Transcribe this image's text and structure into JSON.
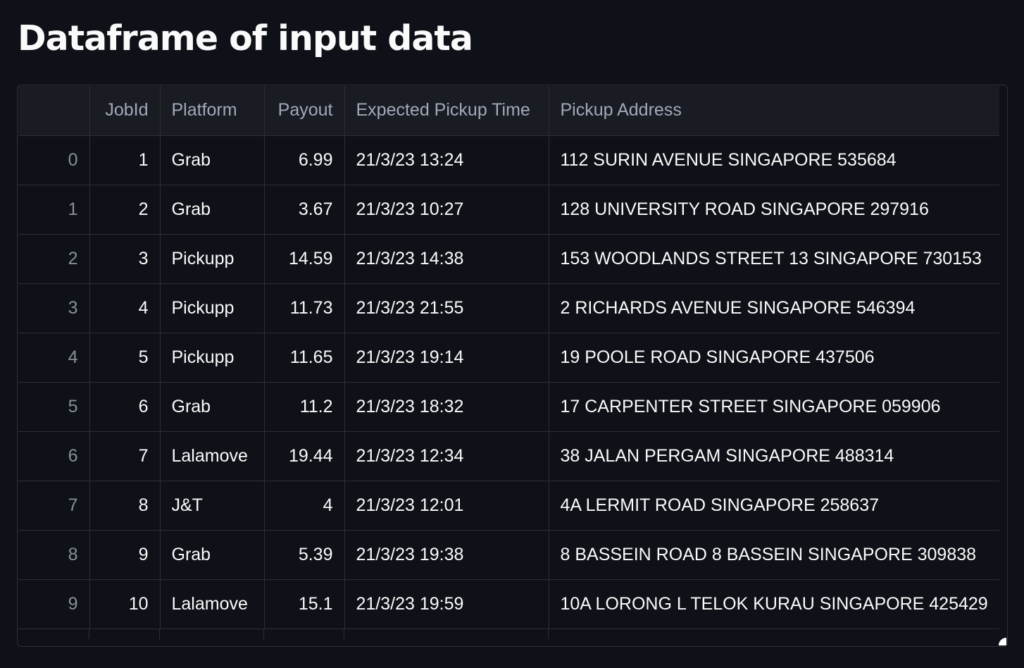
{
  "title": "Dataframe of input data",
  "table": {
    "columns": [
      "",
      "JobId",
      "Platform",
      "Payout",
      "Expected Pickup Time",
      "Pickup Address"
    ],
    "rows": [
      {
        "index": "0",
        "job_id": "1",
        "platform": "Grab",
        "payout": "6.99",
        "time": "21/3/23 13:24",
        "address": "112 SURIN AVENUE SINGAPORE 535684"
      },
      {
        "index": "1",
        "job_id": "2",
        "platform": "Grab",
        "payout": "3.67",
        "time": "21/3/23 10:27",
        "address": "128 UNIVERSITY ROAD SINGAPORE 297916"
      },
      {
        "index": "2",
        "job_id": "3",
        "platform": "Pickupp",
        "payout": "14.59",
        "time": "21/3/23 14:38",
        "address": "153 WOODLANDS STREET 13 SINGAPORE 730153"
      },
      {
        "index": "3",
        "job_id": "4",
        "platform": "Pickupp",
        "payout": "11.73",
        "time": "21/3/23 21:55",
        "address": "2 RICHARDS AVENUE SINGAPORE 546394"
      },
      {
        "index": "4",
        "job_id": "5",
        "platform": "Pickupp",
        "payout": "11.65",
        "time": "21/3/23 19:14",
        "address": "19 POOLE ROAD SINGAPORE 437506"
      },
      {
        "index": "5",
        "job_id": "6",
        "platform": "Grab",
        "payout": "11.2",
        "time": "21/3/23 18:32",
        "address": "17 CARPENTER STREET SINGAPORE 059906"
      },
      {
        "index": "6",
        "job_id": "7",
        "platform": "Lalamove",
        "payout": "19.44",
        "time": "21/3/23 12:34",
        "address": "38 JALAN PERGAM SINGAPORE 488314"
      },
      {
        "index": "7",
        "job_id": "8",
        "platform": "J&T",
        "payout": "4",
        "time": "21/3/23 12:01",
        "address": "4A LERMIT ROAD SINGAPORE 258637"
      },
      {
        "index": "8",
        "job_id": "9",
        "platform": "Grab",
        "payout": "5.39",
        "time": "21/3/23 19:38",
        "address": "8 BASSEIN ROAD 8 BASSEIN SINGAPORE 309838"
      },
      {
        "index": "9",
        "job_id": "10",
        "platform": "Lalamove",
        "payout": "15.1",
        "time": "21/3/23 19:59",
        "address": "10A LORONG L TELOK KURAU SINGAPORE 425429"
      }
    ]
  },
  "colors": {
    "background": "#0e1117",
    "header_background": "#1a1c24",
    "border": "#2e3038",
    "text": "#fafafa",
    "muted_text": "#a3a8b8"
  },
  "icons": {
    "resize_handle": "resize-handle-icon"
  }
}
